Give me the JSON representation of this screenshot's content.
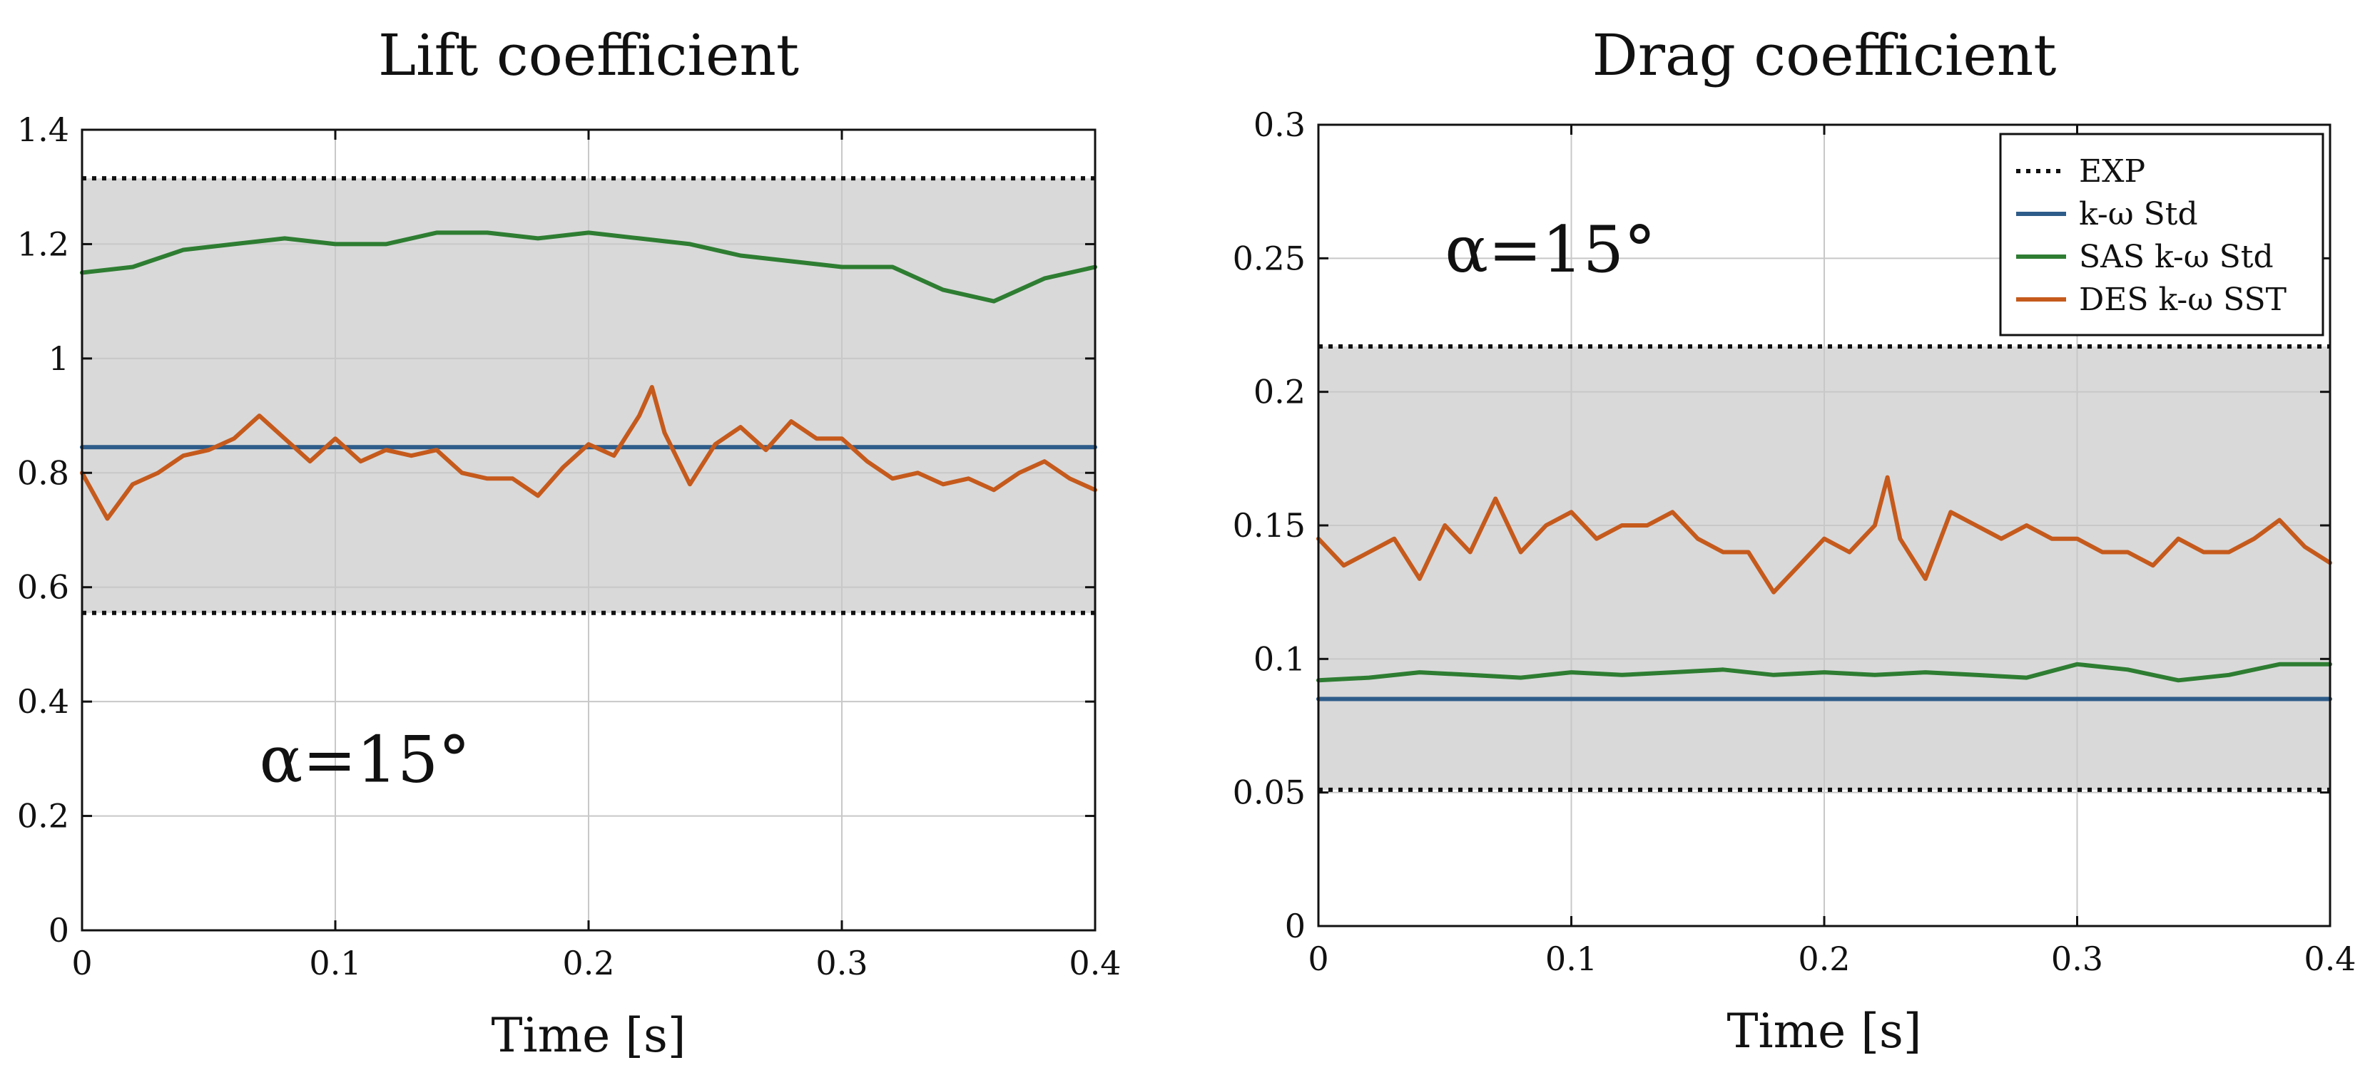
{
  "chart_data": [
    {
      "id": "lift",
      "type": "line",
      "title": "Lift coefficient",
      "xlabel": "Time [s]",
      "ylabel": "",
      "xlim": [
        0,
        0.4
      ],
      "ylim": [
        0,
        1.4
      ],
      "xticks": [
        0,
        0.1,
        0.2,
        0.3,
        0.4
      ],
      "xtick_labels": [
        "0",
        "0.1",
        "0.2",
        "0.3",
        "0.4"
      ],
      "yticks": [
        0,
        0.2,
        0.4,
        0.6,
        0.8,
        1,
        1.2,
        1.4
      ],
      "ytick_labels": [
        "0",
        "0.2",
        "0.4",
        "0.6",
        "0.8",
        "1",
        "1.2",
        "1.4"
      ],
      "grid": true,
      "annotation": "α=15°",
      "exp_band": [
        0.555,
        1.315
      ],
      "series": [
        {
          "name": "EXP",
          "style": "dotted",
          "color": "#111111",
          "values": [
            0.555,
            1.315
          ]
        },
        {
          "name": "k-ω Std",
          "style": "solid",
          "color": "#2e5c8a",
          "x": [
            0,
            0.4
          ],
          "values": [
            0.845,
            0.845
          ]
        },
        {
          "name": "SAS k-ω Std",
          "style": "solid",
          "color": "#2e7d32",
          "x": [
            0,
            0.02,
            0.04,
            0.06,
            0.08,
            0.1,
            0.12,
            0.14,
            0.16,
            0.18,
            0.2,
            0.22,
            0.24,
            0.26,
            0.28,
            0.3,
            0.32,
            0.34,
            0.36,
            0.38,
            0.4
          ],
          "values": [
            1.15,
            1.16,
            1.19,
            1.2,
            1.21,
            1.2,
            1.2,
            1.22,
            1.22,
            1.21,
            1.22,
            1.21,
            1.2,
            1.18,
            1.17,
            1.16,
            1.16,
            1.12,
            1.1,
            1.14,
            1.16
          ]
        },
        {
          "name": "DES k-ω SST",
          "style": "solid",
          "color": "#c55a1c",
          "x": [
            0,
            0.01,
            0.02,
            0.03,
            0.04,
            0.05,
            0.06,
            0.07,
            0.08,
            0.09,
            0.1,
            0.11,
            0.12,
            0.13,
            0.14,
            0.15,
            0.16,
            0.17,
            0.18,
            0.19,
            0.2,
            0.21,
            0.22,
            0.225,
            0.23,
            0.24,
            0.25,
            0.26,
            0.27,
            0.28,
            0.29,
            0.3,
            0.31,
            0.32,
            0.33,
            0.34,
            0.35,
            0.36,
            0.37,
            0.38,
            0.39,
            0.4
          ],
          "values": [
            0.8,
            0.72,
            0.78,
            0.8,
            0.83,
            0.84,
            0.86,
            0.9,
            0.86,
            0.82,
            0.86,
            0.82,
            0.84,
            0.83,
            0.84,
            0.8,
            0.79,
            0.79,
            0.76,
            0.81,
            0.85,
            0.83,
            0.9,
            0.95,
            0.87,
            0.78,
            0.85,
            0.88,
            0.84,
            0.89,
            0.86,
            0.86,
            0.82,
            0.79,
            0.8,
            0.78,
            0.79,
            0.77,
            0.8,
            0.82,
            0.79,
            0.77
          ]
        }
      ]
    },
    {
      "id": "drag",
      "type": "line",
      "title": "Drag coefficient",
      "xlabel": "Time [s]",
      "ylabel": "",
      "xlim": [
        0,
        0.4
      ],
      "ylim": [
        0,
        0.3
      ],
      "xticks": [
        0,
        0.1,
        0.2,
        0.3,
        0.4
      ],
      "xtick_labels": [
        "0",
        "0.1",
        "0.2",
        "0.3",
        "0.4"
      ],
      "yticks": [
        0,
        0.05,
        0.1,
        0.15,
        0.2,
        0.25,
        0.3
      ],
      "ytick_labels": [
        "0",
        "0.05",
        "0.1",
        "0.15",
        "0.2",
        "0.25",
        "0.3"
      ],
      "grid": true,
      "annotation": "α=15°",
      "exp_band": [
        0.051,
        0.217
      ],
      "legend": {
        "placement": "top-right",
        "entries": [
          "EXP",
          "k-ω Std",
          "SAS k-ω Std",
          "DES k-ω SST"
        ]
      },
      "series": [
        {
          "name": "EXP",
          "style": "dotted",
          "color": "#111111",
          "values": [
            0.051,
            0.217
          ]
        },
        {
          "name": "k-ω Std",
          "style": "solid",
          "color": "#2e5c8a",
          "x": [
            0,
            0.4
          ],
          "values": [
            0.085,
            0.085
          ]
        },
        {
          "name": "SAS k-ω Std",
          "style": "solid",
          "color": "#2e7d32",
          "x": [
            0,
            0.02,
            0.04,
            0.06,
            0.08,
            0.1,
            0.12,
            0.14,
            0.16,
            0.18,
            0.2,
            0.22,
            0.24,
            0.26,
            0.28,
            0.3,
            0.32,
            0.34,
            0.36,
            0.38,
            0.4
          ],
          "values": [
            0.092,
            0.093,
            0.095,
            0.094,
            0.093,
            0.095,
            0.094,
            0.095,
            0.096,
            0.094,
            0.095,
            0.094,
            0.095,
            0.094,
            0.093,
            0.098,
            0.096,
            0.092,
            0.094,
            0.098,
            0.098
          ]
        },
        {
          "name": "DES k-ω SST",
          "style": "solid",
          "color": "#c55a1c",
          "x": [
            0,
            0.01,
            0.02,
            0.03,
            0.04,
            0.05,
            0.06,
            0.07,
            0.08,
            0.09,
            0.1,
            0.11,
            0.12,
            0.13,
            0.14,
            0.15,
            0.16,
            0.17,
            0.18,
            0.19,
            0.2,
            0.21,
            0.22,
            0.225,
            0.23,
            0.24,
            0.25,
            0.26,
            0.27,
            0.28,
            0.29,
            0.3,
            0.31,
            0.32,
            0.33,
            0.34,
            0.35,
            0.36,
            0.37,
            0.38,
            0.39,
            0.4
          ],
          "values": [
            0.145,
            0.135,
            0.14,
            0.145,
            0.13,
            0.15,
            0.14,
            0.16,
            0.14,
            0.15,
            0.155,
            0.145,
            0.15,
            0.15,
            0.155,
            0.145,
            0.14,
            0.14,
            0.125,
            0.135,
            0.145,
            0.14,
            0.15,
            0.168,
            0.145,
            0.13,
            0.155,
            0.15,
            0.145,
            0.15,
            0.145,
            0.145,
            0.14,
            0.14,
            0.135,
            0.145,
            0.14,
            0.14,
            0.145,
            0.152,
            0.142,
            0.136
          ]
        }
      ]
    }
  ]
}
